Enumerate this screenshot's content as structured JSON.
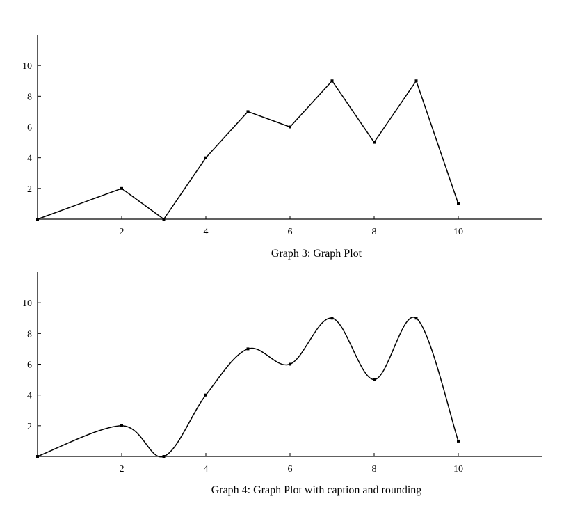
{
  "chart_data": [
    {
      "type": "line",
      "title": "",
      "caption": "Graph 3: Graph Plot",
      "xlabel": "",
      "ylabel": "",
      "interpolation": "linear",
      "xlim": [
        0,
        12
      ],
      "ylim": [
        0,
        12
      ],
      "xticks": [
        2,
        4,
        6,
        8,
        10
      ],
      "yticks": [
        2,
        4,
        6,
        8,
        10
      ],
      "x": [
        0,
        2,
        3,
        4,
        5,
        6,
        7,
        8,
        9,
        10
      ],
      "y": [
        0,
        2,
        0,
        4,
        7,
        6,
        9,
        5,
        9,
        1
      ],
      "grid": false,
      "legend": "none",
      "color": "#000000"
    },
    {
      "type": "line",
      "title": "",
      "caption": "Graph 4: Graph Plot with caption and rounding",
      "xlabel": "",
      "ylabel": "",
      "interpolation": "smooth",
      "xlim": [
        0,
        12
      ],
      "ylim": [
        0,
        12
      ],
      "xticks": [
        2,
        4,
        6,
        8,
        10
      ],
      "yticks": [
        2,
        4,
        6,
        8,
        10
      ],
      "x": [
        0,
        2,
        3,
        4,
        5,
        6,
        7,
        8,
        9,
        10
      ],
      "y": [
        0,
        2,
        0,
        4,
        7,
        6,
        9,
        5,
        9,
        1
      ],
      "grid": false,
      "legend": "none",
      "color": "#000000"
    }
  ]
}
